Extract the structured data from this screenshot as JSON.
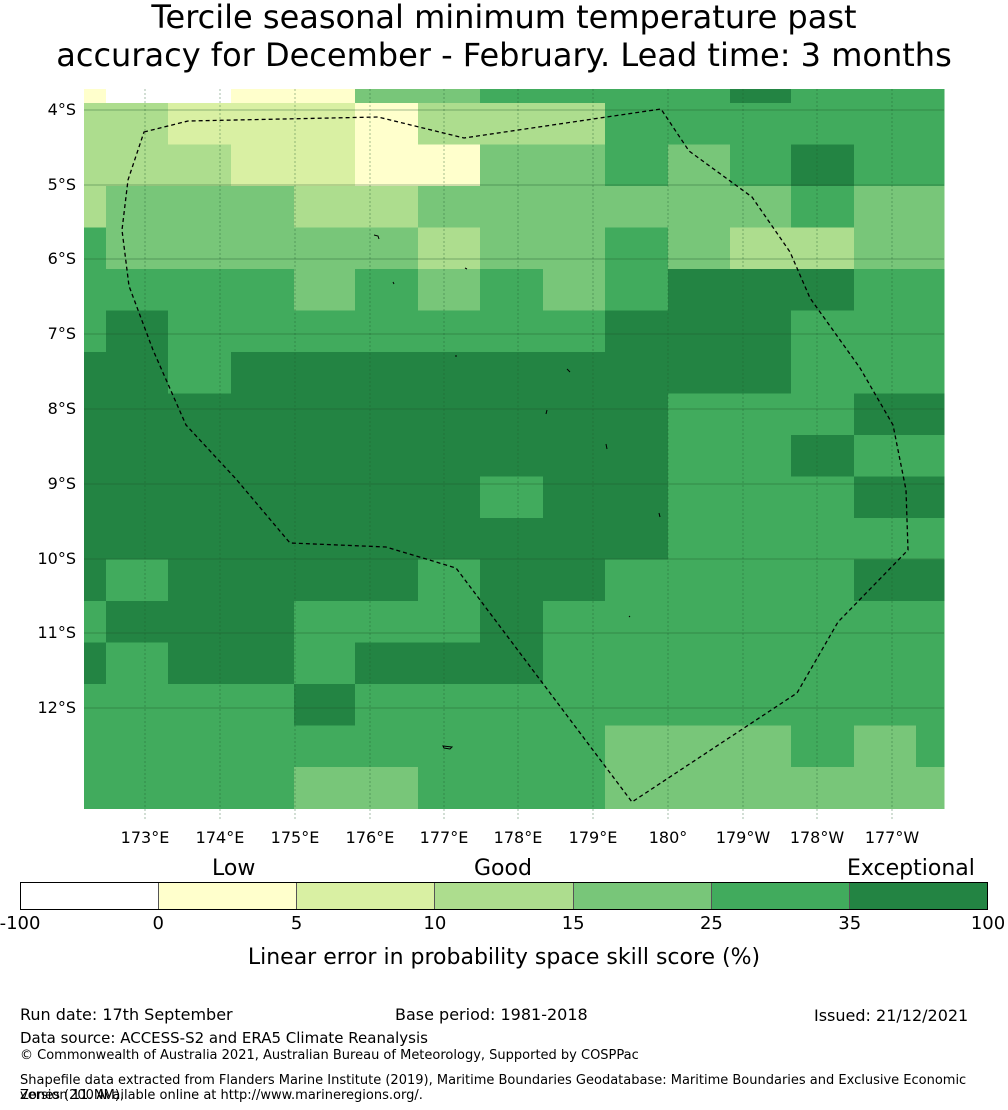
{
  "title": {
    "line1": "Tercile seasonal minimum temperature past",
    "line2": "accuracy for December - February. Lead time: 3 months"
  },
  "map": {
    "lat_labels": [
      "4°S",
      "5°S",
      "6°S",
      "7°S",
      "8°S",
      "9°S",
      "10°S",
      "11°S",
      "12°S"
    ],
    "lon_labels": [
      "173°E",
      "174°E",
      "175°E",
      "176°E",
      "177°E",
      "178°E",
      "179°E",
      "180°",
      "179°W",
      "178°W",
      "177°W"
    ],
    "grid_levels": [
      [
        1,
        0,
        0,
        1,
        1,
        4,
        4,
        5,
        5,
        5,
        5,
        6,
        5,
        5
      ],
      [
        3,
        3,
        2,
        2,
        2,
        1,
        3,
        3,
        3,
        5,
        5,
        5,
        5,
        5
      ],
      [
        3,
        3,
        3,
        2,
        2,
        1,
        1,
        4,
        4,
        5,
        4,
        5,
        6,
        5
      ],
      [
        3,
        4,
        4,
        4,
        3,
        3,
        4,
        4,
        4,
        4,
        4,
        4,
        5,
        4
      ],
      [
        5,
        4,
        4,
        4,
        4,
        4,
        3,
        4,
        4,
        5,
        4,
        3,
        3,
        4
      ],
      [
        5,
        5,
        5,
        5,
        4,
        5,
        4,
        5,
        4,
        5,
        6,
        6,
        6,
        5
      ],
      [
        5,
        6,
        5,
        5,
        5,
        5,
        5,
        5,
        5,
        6,
        6,
        6,
        5,
        5
      ],
      [
        6,
        6,
        5,
        6,
        6,
        6,
        6,
        6,
        6,
        6,
        6,
        6,
        5,
        5
      ],
      [
        6,
        6,
        6,
        6,
        6,
        6,
        6,
        6,
        6,
        6,
        5,
        5,
        5,
        6
      ],
      [
        6,
        6,
        6,
        6,
        6,
        6,
        6,
        6,
        6,
        6,
        5,
        5,
        6,
        5
      ],
      [
        6,
        6,
        6,
        6,
        6,
        6,
        6,
        5,
        6,
        6,
        5,
        5,
        5,
        6
      ],
      [
        6,
        6,
        6,
        6,
        6,
        6,
        6,
        6,
        6,
        6,
        5,
        5,
        5,
        5
      ],
      [
        6,
        5,
        6,
        6,
        6,
        6,
        5,
        6,
        6,
        5,
        5,
        5,
        5,
        6
      ],
      [
        5,
        6,
        6,
        6,
        5,
        5,
        5,
        6,
        5,
        5,
        5,
        5,
        5,
        5
      ],
      [
        6,
        5,
        6,
        6,
        5,
        6,
        6,
        6,
        5,
        5,
        5,
        5,
        5,
        5
      ],
      [
        5,
        5,
        5,
        5,
        6,
        5,
        5,
        5,
        5,
        5,
        5,
        5,
        5,
        5
      ],
      [
        5,
        5,
        5,
        5,
        5,
        5,
        5,
        5,
        5,
        4,
        4,
        4,
        5,
        4,
        5
      ],
      [
        5,
        5,
        5,
        5,
        4,
        4,
        5,
        5,
        5,
        4,
        4,
        4,
        4,
        4
      ]
    ],
    "eez_boundary_note": "dashed EEZ outline"
  },
  "legend": {
    "categories": [
      "Low",
      "Good",
      "Exceptional"
    ],
    "ticks": [
      "-100",
      "0",
      "5",
      "10",
      "15",
      "25",
      "35",
      "100"
    ],
    "colors": [
      "#ffffff",
      "#ffffcc",
      "#d9f0a3",
      "#addd8e",
      "#78c679",
      "#41ab5d",
      "#238443"
    ],
    "axis_label": "Linear error in probability space skill score (%)"
  },
  "footer": {
    "run_date": "Run date: 17th September",
    "base_period": "Base period: 1981-2018",
    "issued": "Issued: 21/12/2021",
    "data_source": "Data source: ACCESS-S2 and ERA5 Climate Reanalysis",
    "copyright": "© Commonwealth of Australia 2021, Australian Bureau of Meteorology, Supported by COSPPac",
    "shapefile_line1": "Shapefile data extracted from Flanders Marine Institute (2019), Maritime Boundaries Geodatabase: Maritime Boundaries and Exclusive Economic Zones (200NM),",
    "shapefile_line2": "version 11. Available online at http://www.marineregions.org/."
  }
}
